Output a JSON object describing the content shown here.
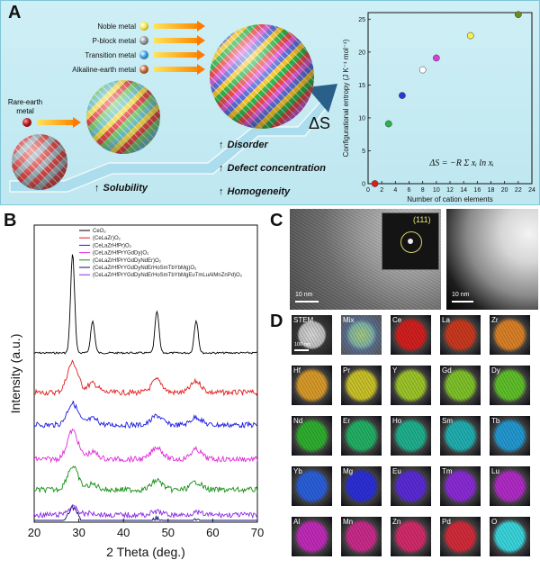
{
  "panel_a": {
    "letter": "A",
    "metals": [
      {
        "label": "Noble metal",
        "color": "#f4e53a"
      },
      {
        "label": "P-block metal",
        "color": "#8a8f97"
      },
      {
        "label": "Transition metal",
        "color": "#2f9be0"
      },
      {
        "label": "Alkaline-earth metal",
        "color": "#c0602a"
      }
    ],
    "rare_earth_label_1": "Rare-earth",
    "rare_earth_label_2": "metal",
    "rare_earth_color": "#b0161c",
    "delta_s": "ΔS",
    "solubility": "Solubility",
    "features": [
      "Disorder",
      "Defect concentration",
      "Homogeneity"
    ],
    "up_glyph": "↑"
  },
  "chart_data": [
    {
      "type": "scatter",
      "title": "",
      "xlabel": "Number of cation elements",
      "ylabel": "Configurational entropy (J K⁻¹ mol⁻¹)",
      "xlim": [
        0,
        24
      ],
      "ylim": [
        0,
        26
      ],
      "xticks": [
        0,
        2,
        4,
        6,
        8,
        10,
        12,
        14,
        16,
        18,
        20,
        22,
        24
      ],
      "yticks": [
        0,
        5,
        10,
        15,
        20,
        25
      ],
      "points": [
        {
          "x": 1,
          "y": 0,
          "color": "#e01b1b"
        },
        {
          "x": 3,
          "y": 9.1,
          "color": "#2bb34a"
        },
        {
          "x": 5,
          "y": 13.4,
          "color": "#2a36d6"
        },
        {
          "x": 8,
          "y": 17.3,
          "color": "#ffffff"
        },
        {
          "x": 10,
          "y": 19.1,
          "color": "#d640d6"
        },
        {
          "x": 15,
          "y": 22.5,
          "color": "#f7f04a"
        },
        {
          "x": 22,
          "y": 25.7,
          "color": "#6f8a1e"
        }
      ],
      "equation": "ΔS = −R Σ xᵢ ln xᵢ"
    },
    {
      "type": "line",
      "title": "",
      "xlabel": "2 Theta (deg.)",
      "ylabel": "Intensity (a.u.)",
      "xlim": [
        20,
        70
      ],
      "xticks": [
        20,
        30,
        40,
        50,
        60,
        70
      ],
      "series": [
        {
          "name": "CeO₂",
          "color": "#000000",
          "peaks": [
            28.6,
            33.1,
            47.5,
            56.3
          ],
          "heights": [
            1.0,
            0.32,
            0.42,
            0.33
          ]
        },
        {
          "name": "(CeLaZr)O₂",
          "color": "#e21b1b",
          "peaks": [
            28.6,
            33.1,
            47.5,
            56.3
          ],
          "heights": [
            0.33,
            0.1,
            0.14,
            0.12
          ]
        },
        {
          "name": "(CeLaZrHfPr)O₂",
          "color": "#1a1ae0",
          "peaks": [
            28.6,
            33.1,
            47.5,
            56.3
          ],
          "heights": [
            0.28,
            0.08,
            0.12,
            0.1
          ]
        },
        {
          "name": "(CeLaZrHfPrYGdDy)O₂",
          "color": "#e02bd8",
          "peaks": [
            28.6,
            33.1,
            47.5,
            56.3
          ],
          "heights": [
            0.33,
            0.08,
            0.14,
            0.11
          ]
        },
        {
          "name": "(CeLaZrHfPrYGdDyNdEr)O₂",
          "color": "#138f13",
          "peaks": [
            28.6,
            33.1,
            47.5,
            56.3
          ],
          "heights": [
            0.3,
            0.07,
            0.12,
            0.1
          ]
        },
        {
          "name": "(CeLaZrHfPrYGdDyNdErHoSmTbYbMg)O₂",
          "color": "#0c0c6e",
          "peaks": [
            28.6,
            33.1,
            47.5,
            56.3
          ],
          "heights": [
            0.28,
            0.06,
            0.12,
            0.09
          ]
        },
        {
          "name": "(CeLaZrHfPrYGdDyNdErHoSmTbYbMgEuTmLuAlMnZnPd)O₂",
          "color": "#8a2be2",
          "peaks": [
            28.6,
            33.1,
            47.5,
            56.3
          ],
          "heights": [
            0.16,
            0.04,
            0.07,
            0.05
          ]
        }
      ]
    }
  ],
  "panel_b": {
    "letter": "B"
  },
  "panel_c": {
    "letter": "C",
    "fft_label": "(111)",
    "scale_left": "10 nm",
    "scale_right": "10 nm"
  },
  "panel_d": {
    "letter": "D",
    "scale": "100 nm",
    "tiles": [
      {
        "label": "STEM",
        "color": "#8c8c8c"
      },
      {
        "label": "Mix",
        "color": "#4fa3a0"
      },
      {
        "label": "Ce",
        "color": "#d21f1f"
      },
      {
        "label": "La",
        "color": "#c9391f"
      },
      {
        "label": "Zr",
        "color": "#d98027"
      },
      {
        "label": "Hf",
        "color": "#d79a2a"
      },
      {
        "label": "Pr",
        "color": "#c8c12a"
      },
      {
        "label": "Y",
        "color": "#9cc42a"
      },
      {
        "label": "Gd",
        "color": "#7fc12a"
      },
      {
        "label": "Dy",
        "color": "#5fbf2a"
      },
      {
        "label": "Nd",
        "color": "#2fae2f"
      },
      {
        "label": "Er",
        "color": "#22b065"
      },
      {
        "label": "Ho",
        "color": "#1fb08e"
      },
      {
        "label": "Sm",
        "color": "#21aeb0"
      },
      {
        "label": "Tb",
        "color": "#2398d0"
      },
      {
        "label": "Yb",
        "color": "#2b5fd9"
      },
      {
        "label": "Mg",
        "color": "#2c2fd6"
      },
      {
        "label": "Eu",
        "color": "#5a2bd6"
      },
      {
        "label": "Tm",
        "color": "#8a2bd6"
      },
      {
        "label": "Lu",
        "color": "#b02bc6"
      },
      {
        "label": "Al",
        "color": "#c02bb8"
      },
      {
        "label": "Mn",
        "color": "#c82b8a"
      },
      {
        "label": "Zn",
        "color": "#d12b6a"
      },
      {
        "label": "Pd",
        "color": "#d22b3a"
      },
      {
        "label": "O",
        "color": "#39d5dc"
      }
    ]
  }
}
